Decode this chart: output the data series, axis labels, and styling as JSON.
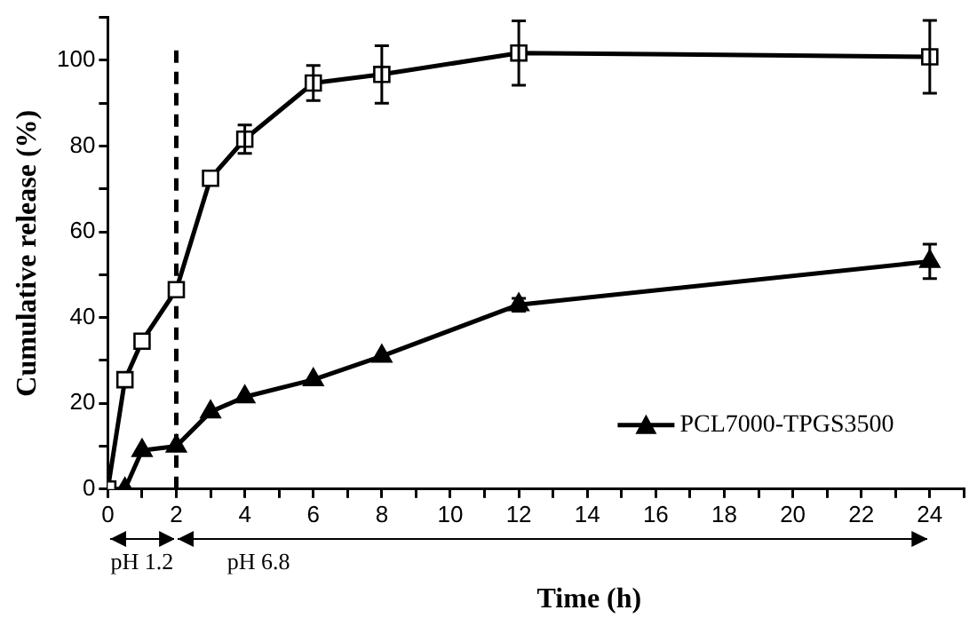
{
  "chart_data": {
    "type": "line",
    "xlabel": "Time (h)",
    "ylabel": "Cumulative release (%)",
    "x": [
      0,
      0.5,
      1,
      2,
      3,
      4,
      6,
      8,
      12,
      24
    ],
    "series": [
      {
        "color": "#000000",
        "marker": "square",
        "values": [
          0,
          25.5,
          34.5,
          46.5,
          72.5,
          81.6,
          94.7,
          96.7,
          101.7,
          100.8
        ],
        "errors": [
          null,
          null,
          null,
          null,
          null,
          3.3,
          4.1,
          6.7,
          7.5,
          8.5
        ]
      },
      {
        "name": "PCL7000-TPGS3500",
        "color": "#000000",
        "marker": "triangle",
        "values": [
          0,
          0,
          9,
          10,
          18,
          21.5,
          25.5,
          31,
          43,
          53.1
        ],
        "errors": [
          null,
          null,
          null,
          null,
          null,
          null,
          null,
          null,
          1.5,
          4
        ]
      }
    ],
    "xlim": [
      0,
      25
    ],
    "xticks": [
      0,
      {
        "value": 1,
        "label": null
      },
      2,
      {
        "value": 3,
        "label": null
      },
      4,
      {
        "value": 5,
        "label": null
      },
      6,
      {
        "value": 7,
        "label": null
      },
      8,
      {
        "value": 9,
        "label": null
      },
      10,
      {
        "value": 11,
        "label": null
      },
      12,
      {
        "value": 13,
        "label": null
      },
      14,
      {
        "value": 15,
        "label": null
      },
      16,
      {
        "value": 17,
        "label": null
      },
      18,
      {
        "value": 19,
        "label": null
      },
      20,
      {
        "value": 21,
        "label": null
      },
      22,
      {
        "value": 23,
        "label": null
      },
      24,
      {
        "value": 25,
        "label": null
      }
    ],
    "ylim": [
      0,
      110
    ],
    "yticks": [
      0,
      {
        "value": 10,
        "label": null
      },
      20,
      {
        "value": 30,
        "label": null
      },
      40,
      {
        "value": 50,
        "label": null
      },
      60,
      {
        "value": 70,
        "label": null
      },
      80,
      {
        "value": 90,
        "label": null
      },
      100,
      {
        "value": 110,
        "label": null
      }
    ],
    "ref_lines": [
      {
        "axis": "x",
        "value": 2,
        "line_style": "dashed",
        "color": "#000000"
      }
    ],
    "annotations": [
      "pH 1.2",
      "pH 6.8"
    ],
    "grid": false,
    "legend": "bottom right",
    "line_style": "solid"
  }
}
